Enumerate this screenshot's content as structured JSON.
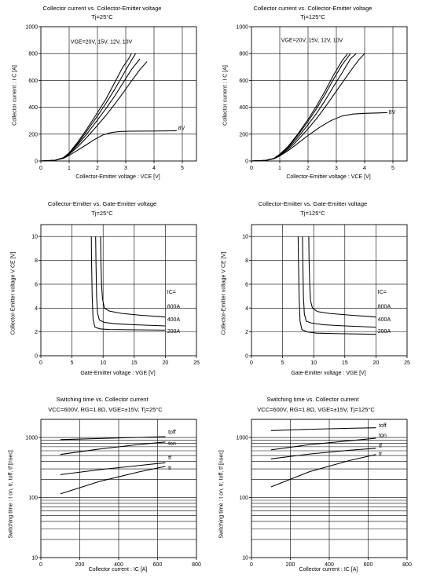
{
  "chart_data": [
    {
      "id": "ic_vce_25",
      "type": "line",
      "title": "Collector current vs. Collector-Emitter voltage",
      "subtitle": "Tj=25°C",
      "xlabel": "Collector-Emitter voltage : VCE [V]",
      "ylabel": "Collector current : I C [A]",
      "xlim": [
        0,
        5.5
      ],
      "ylim": [
        0,
        1000
      ],
      "xticks": [
        0,
        1,
        2,
        3,
        4,
        5
      ],
      "yticks": [
        0,
        200,
        400,
        600,
        800,
        1000
      ],
      "xgrid": [
        1,
        2,
        3,
        4,
        5
      ],
      "ygrid": [
        200,
        400,
        600,
        800
      ],
      "annotations": [
        {
          "text": "VGE=20V, 15V, 12V, 10V",
          "x": 1.05,
          "y": 875
        },
        {
          "text": "8V",
          "x": 4.85,
          "y": 230
        }
      ],
      "series": [
        {
          "x": [
            0,
            0.5,
            0.8,
            1.0,
            1.3,
            1.6,
            2.0,
            2.3,
            2.6,
            2.9,
            3.1,
            3.2
          ],
          "y": [
            0,
            5,
            25,
            60,
            140,
            230,
            360,
            460,
            580,
            700,
            760,
            800
          ]
        },
        {
          "x": [
            0,
            0.5,
            0.8,
            1.0,
            1.3,
            1.6,
            2.0,
            2.3,
            2.6,
            2.9,
            3.2,
            3.35
          ],
          "y": [
            0,
            5,
            25,
            58,
            130,
            215,
            335,
            430,
            530,
            640,
            750,
            800
          ]
        },
        {
          "x": [
            0,
            0.5,
            0.8,
            1.0,
            1.3,
            1.6,
            2.0,
            2.3,
            2.6,
            2.9,
            3.2,
            3.5
          ],
          "y": [
            0,
            5,
            24,
            55,
            120,
            195,
            305,
            390,
            480,
            580,
            680,
            760
          ]
        },
        {
          "x": [
            0,
            0.5,
            0.8,
            1.0,
            1.3,
            1.6,
            2.0,
            2.3,
            2.6,
            2.9,
            3.2,
            3.5,
            3.75
          ],
          "y": [
            0,
            5,
            22,
            50,
            105,
            170,
            265,
            340,
            420,
            505,
            595,
            680,
            740
          ]
        },
        {
          "x": [
            0,
            0.5,
            0.8,
            1.0,
            1.3,
            1.6,
            1.9,
            2.2,
            2.5,
            2.8,
            3.2,
            4.0,
            4.8
          ],
          "y": [
            0,
            5,
            20,
            42,
            80,
            120,
            160,
            195,
            212,
            220,
            222,
            223,
            225
          ]
        }
      ]
    },
    {
      "id": "ic_vce_125",
      "type": "line",
      "title": "Collector current vs. Collector-Emitter voltage",
      "subtitle": "Tj=125°C",
      "xlabel": "Collector-Emitter voltage : VCE [V]",
      "ylabel": "Collector current : I C [A]",
      "xlim": [
        0,
        5.5
      ],
      "ylim": [
        0,
        1000
      ],
      "xticks": [
        0,
        1,
        2,
        3,
        4,
        5
      ],
      "yticks": [
        0,
        200,
        400,
        600,
        800,
        1000
      ],
      "xgrid": [
        1,
        2,
        3,
        4,
        5
      ],
      "ygrid": [
        200,
        400,
        600,
        800
      ],
      "annotations": [
        {
          "text": "VGE=20V, 15V, 12V, 10V",
          "x": 1.05,
          "y": 885
        },
        {
          "text": "8V",
          "x": 4.85,
          "y": 350
        }
      ],
      "series": [
        {
          "x": [
            0,
            0.5,
            0.8,
            1.0,
            1.3,
            1.6,
            2.0,
            2.3,
            2.6,
            2.9,
            3.2,
            3.4
          ],
          "y": [
            0,
            4,
            20,
            50,
            110,
            190,
            310,
            410,
            520,
            640,
            745,
            800
          ]
        },
        {
          "x": [
            0,
            0.5,
            0.8,
            1.0,
            1.3,
            1.6,
            2.0,
            2.3,
            2.6,
            2.9,
            3.2,
            3.5
          ],
          "y": [
            0,
            4,
            20,
            48,
            105,
            180,
            295,
            390,
            495,
            610,
            715,
            800
          ]
        },
        {
          "x": [
            0,
            0.5,
            0.8,
            1.0,
            1.3,
            1.6,
            2.0,
            2.3,
            2.6,
            2.9,
            3.2,
            3.5,
            3.7
          ],
          "y": [
            0,
            4,
            19,
            45,
            97,
            165,
            270,
            355,
            450,
            555,
            655,
            760,
            800
          ]
        },
        {
          "x": [
            0,
            0.5,
            0.8,
            1.0,
            1.3,
            1.6,
            2.0,
            2.3,
            2.6,
            2.9,
            3.2,
            3.5,
            3.8,
            4.0
          ],
          "y": [
            0,
            4,
            18,
            42,
            88,
            148,
            240,
            315,
            400,
            490,
            580,
            670,
            755,
            800
          ]
        },
        {
          "x": [
            0,
            0.5,
            0.8,
            1.0,
            1.3,
            1.6,
            2.0,
            2.4,
            2.8,
            3.2,
            3.6,
            4.0,
            4.5,
            4.8
          ],
          "y": [
            0,
            4,
            17,
            38,
            78,
            125,
            190,
            250,
            300,
            335,
            350,
            355,
            358,
            360
          ]
        }
      ]
    },
    {
      "id": "vce_vge_25",
      "type": "line",
      "title": "Collector-Emitter vs. Gate-Emitter voltage",
      "subtitle": "Tj=25°C",
      "xlabel": "Gate-Emitter voltage : VGE [V]",
      "ylabel": "Collector-Emitter voltage V CE [V]",
      "xlim": [
        0,
        25
      ],
      "ylim": [
        0,
        11
      ],
      "xticks": [
        0,
        5,
        10,
        15,
        20,
        25
      ],
      "yticks": [
        0,
        2,
        4,
        6,
        8,
        10
      ],
      "xgrid": [
        5,
        10,
        15,
        20
      ],
      "ygrid": [
        2,
        4,
        6,
        8,
        10
      ],
      "annotations": [
        {
          "text": "IC=",
          "x": 20.3,
          "y": 5.2
        },
        {
          "text": "800A",
          "x": 20.3,
          "y": 4.0
        },
        {
          "text": "400A",
          "x": 20.3,
          "y": 2.9
        },
        {
          "text": "200A",
          "x": 20.3,
          "y": 1.9
        }
      ],
      "series": [
        {
          "x": [
            9.6,
            9.65,
            9.75,
            9.9,
            10.2,
            11,
            13,
            16,
            20
          ],
          "y": [
            10,
            8,
            6,
            4.8,
            4.0,
            3.75,
            3.55,
            3.4,
            3.25
          ]
        },
        {
          "x": [
            8.8,
            8.85,
            8.95,
            9.1,
            9.4,
            10.2,
            12,
            15,
            20
          ],
          "y": [
            10,
            8,
            5,
            3.6,
            3.0,
            2.8,
            2.68,
            2.6,
            2.5
          ]
        },
        {
          "x": [
            8.1,
            8.15,
            8.25,
            8.4,
            8.7,
            9.5,
            11,
            14,
            20
          ],
          "y": [
            10,
            8,
            5,
            3.0,
            2.4,
            2.25,
            2.2,
            2.18,
            2.15
          ]
        }
      ]
    },
    {
      "id": "vce_vge_125",
      "type": "line",
      "title": "Collector-Emitter vs. Gate-Emitter voltage",
      "subtitle": "Tj=125°C",
      "xlabel": "Gate-Emitter voltage : VGE [V]",
      "ylabel": "Collector-Emitter voltage V CE [V]",
      "xlim": [
        0,
        25
      ],
      "ylim": [
        0,
        11
      ],
      "xticks": [
        0,
        5,
        10,
        15,
        20,
        25
      ],
      "yticks": [
        0,
        2,
        4,
        6,
        8,
        10
      ],
      "xgrid": [
        5,
        10,
        15,
        20
      ],
      "ygrid": [
        2,
        4,
        6,
        8,
        10
      ],
      "annotations": [
        {
          "text": "IC=",
          "x": 20.3,
          "y": 5.2
        },
        {
          "text": "800A",
          "x": 20.3,
          "y": 4.0
        },
        {
          "text": "400A",
          "x": 20.3,
          "y": 2.9
        },
        {
          "text": "200A",
          "x": 20.3,
          "y": 1.9
        }
      ],
      "series": [
        {
          "x": [
            9.2,
            9.25,
            9.35,
            9.5,
            9.8,
            10.6,
            12.5,
            16,
            20
          ],
          "y": [
            10,
            8,
            6,
            4.6,
            4.0,
            3.7,
            3.55,
            3.4,
            3.25
          ]
        },
        {
          "x": [
            8.2,
            8.25,
            8.35,
            8.5,
            8.8,
            9.6,
            11.5,
            15,
            20
          ],
          "y": [
            10,
            8,
            5,
            3.5,
            2.9,
            2.75,
            2.6,
            2.5,
            2.4
          ]
        },
        {
          "x": [
            7.5,
            7.55,
            7.65,
            7.8,
            8.1,
            8.9,
            10.5,
            14,
            20
          ],
          "y": [
            10,
            8,
            5,
            2.9,
            2.2,
            2.0,
            1.9,
            1.85,
            1.8
          ]
        }
      ]
    },
    {
      "id": "sw_ic_25",
      "type": "line",
      "title": "Switching time vs. Collector current",
      "subtitle": "VCC=600V, RG=1.8Ω, VGE=±15V, Tj=25°C",
      "xlabel": "Collector current : IC [A]",
      "ylabel": "Switching time : t on, tr, toff, tf [nsec]",
      "yscale": "log",
      "xlim": [
        0,
        800
      ],
      "ylim": [
        10,
        2000
      ],
      "xticks": [
        0,
        200,
        400,
        600,
        800
      ],
      "yticks": [
        10,
        100,
        1000
      ],
      "xgrid": [
        200,
        400,
        600
      ],
      "annotations": [
        {
          "text": "toff",
          "x": 655,
          "y": 1150
        },
        {
          "text": "ton",
          "x": 655,
          "y": 740
        },
        {
          "text": "tf",
          "x": 655,
          "y": 430
        },
        {
          "text": "tr",
          "x": 655,
          "y": 290
        }
      ],
      "series": [
        {
          "name": "toff",
          "x": [
            100,
            300,
            500,
            640
          ],
          "y": [
            920,
            960,
            1000,
            1030
          ]
        },
        {
          "name": "ton",
          "x": [
            100,
            300,
            500,
            640
          ],
          "y": [
            520,
            640,
            760,
            840
          ]
        },
        {
          "name": "tf",
          "x": [
            100,
            300,
            500,
            640
          ],
          "y": [
            240,
            290,
            340,
            380
          ]
        },
        {
          "name": "tr",
          "x": [
            100,
            300,
            500,
            640
          ],
          "y": [
            115,
            185,
            265,
            330
          ]
        }
      ]
    },
    {
      "id": "sw_ic_125",
      "type": "line",
      "title": "Switching time vs. Collector current",
      "subtitle": "VCC=600V, RG=1.8Ω, VGE=±15V, Tj=125°C",
      "xlabel": "Collector current : IC [A]",
      "ylabel": "Switching time : t on, tr, toff, tf [nsec]",
      "yscale": "log",
      "xlim": [
        0,
        800
      ],
      "ylim": [
        10,
        2000
      ],
      "xticks": [
        0,
        200,
        400,
        600,
        800
      ],
      "yticks": [
        10,
        100,
        1000
      ],
      "xgrid": [
        200,
        400,
        600
      ],
      "annotations": [
        {
          "text": "toff",
          "x": 655,
          "y": 1480
        },
        {
          "text": "ton",
          "x": 655,
          "y": 1020
        },
        {
          "text": "tf",
          "x": 655,
          "y": 680
        },
        {
          "text": "tr",
          "x": 655,
          "y": 500
        }
      ],
      "series": [
        {
          "name": "toff",
          "x": [
            100,
            300,
            500,
            640
          ],
          "y": [
            1300,
            1370,
            1420,
            1450
          ]
        },
        {
          "name": "ton",
          "x": [
            100,
            300,
            500,
            640
          ],
          "y": [
            620,
            760,
            880,
            970
          ]
        },
        {
          "name": "tf",
          "x": [
            100,
            300,
            500,
            640
          ],
          "y": [
            440,
            530,
            610,
            660
          ]
        },
        {
          "name": "tr",
          "x": [
            100,
            300,
            500,
            640
          ],
          "y": [
            150,
            270,
            410,
            520
          ]
        }
      ]
    }
  ]
}
